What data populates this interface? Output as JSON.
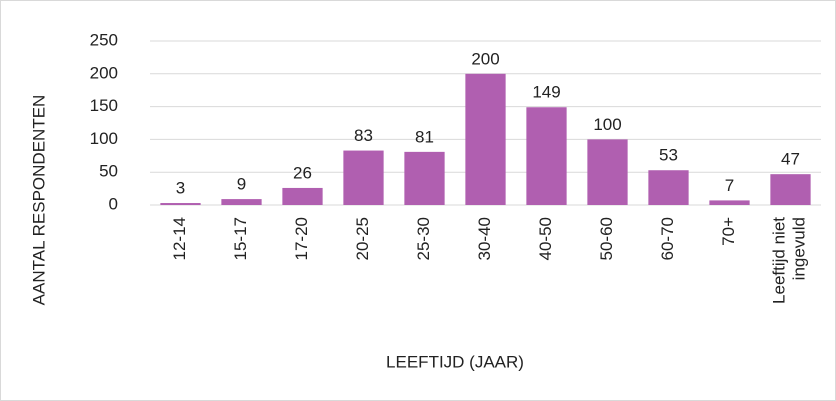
{
  "chart_data": {
    "type": "bar",
    "categories": [
      "12-14",
      "15-17",
      "17-20",
      "20-25",
      "25-30",
      "30-40",
      "40-50",
      "50-60",
      "60-70",
      "70+",
      "Leeftijd niet ingevuld"
    ],
    "values": [
      3,
      9,
      26,
      83,
      81,
      200,
      149,
      100,
      53,
      7,
      47
    ],
    "color": "#b05fb0",
    "ylim": [
      0,
      250
    ],
    "yticks": [
      0,
      50,
      100,
      150,
      200,
      250
    ],
    "grid": true,
    "x_label": "LEEFTIJD (JAAR)",
    "y_label": "AANTAL RESPONDENTEN"
  }
}
